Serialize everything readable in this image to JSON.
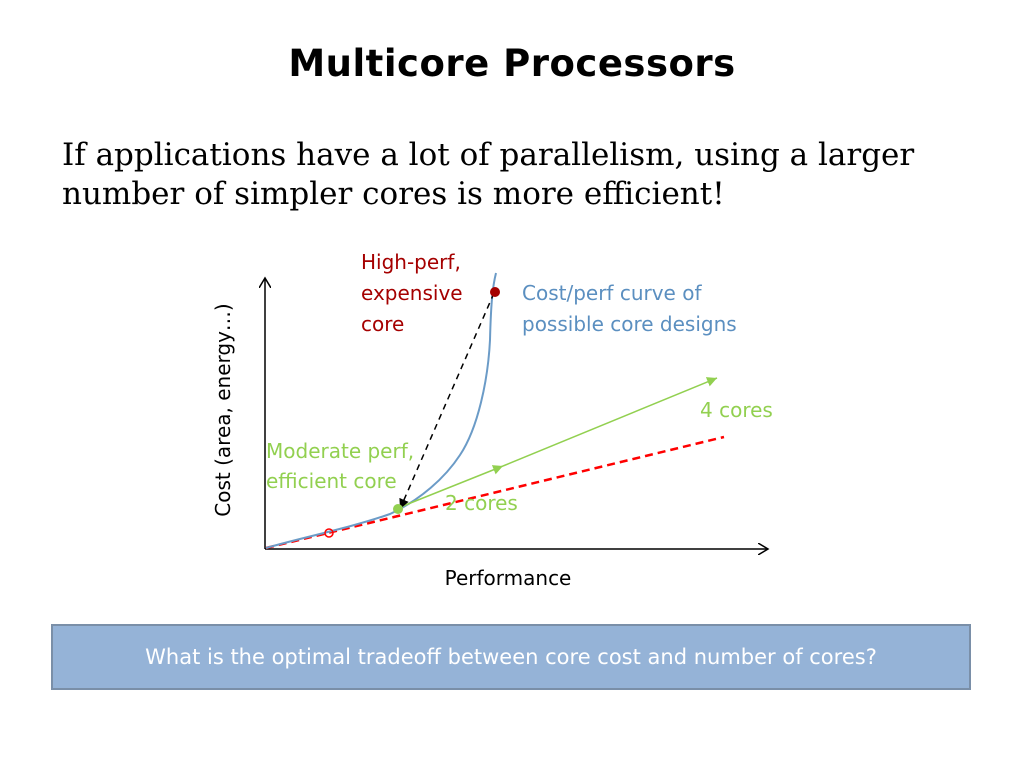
{
  "slide": {
    "title": "Multicore Processors",
    "body_line1": "If applications have a lot of parallelism, using a larger",
    "body_line2": "number of simpler cores is more efficient!",
    "question": "What is the optimal tradeoff between core cost and number of cores?"
  },
  "diagram": {
    "x_axis_label": "Performance",
    "y_axis_label": "Cost (area, energy…)",
    "high_perf_label": [
      "High-perf,",
      "expensive",
      "core"
    ],
    "curve_label": [
      "Cost/perf curve of",
      "possible core designs"
    ],
    "moderate_label": [
      "Moderate perf,",
      "efficient core"
    ],
    "two_cores_label": "2 cores",
    "four_cores_label": "4 cores"
  },
  "colors": {
    "curve": "#6b9bc7",
    "high_perf": "#a50000",
    "green": "#92d050",
    "red_dashed": "#ff0000",
    "box_fill": "#95b3d7",
    "box_text": "#ffffff"
  }
}
